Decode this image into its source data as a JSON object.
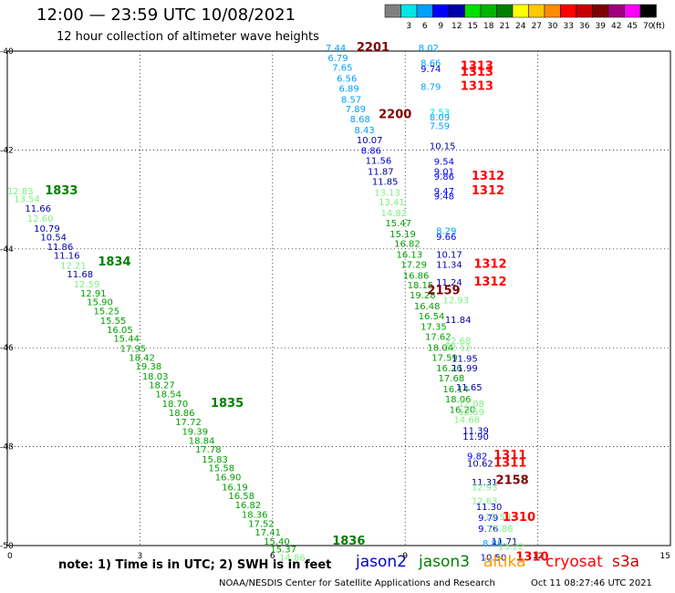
{
  "header": {
    "title": "12:00 — 23:59 UTC 10/08/2021",
    "subtitle": "12 hour collection of altimeter wave heights"
  },
  "colorbar": {
    "unit": "(ft)",
    "bins": [
      {
        "label": "",
        "color": "#808080"
      },
      {
        "label": "3",
        "color": "#00e5e5"
      },
      {
        "label": "6",
        "color": "#00a0ff"
      },
      {
        "label": "9",
        "color": "#0000ff"
      },
      {
        "label": "12",
        "color": "#0000a8"
      },
      {
        "label": "15",
        "color": "#00e000"
      },
      {
        "label": "18",
        "color": "#00b400"
      },
      {
        "label": "21",
        "color": "#008000"
      },
      {
        "label": "24",
        "color": "#ffff00"
      },
      {
        "label": "27",
        "color": "#ffc800"
      },
      {
        "label": "30",
        "color": "#ff8c00"
      },
      {
        "label": "33",
        "color": "#ff0000"
      },
      {
        "label": "36",
        "color": "#c80000"
      },
      {
        "label": "39",
        "color": "#800000"
      },
      {
        "label": "42",
        "color": "#a00080"
      },
      {
        "label": "45",
        "color": "#ff00ff"
      },
      {
        "label": "70",
        "color": "#000000"
      }
    ]
  },
  "chart_data": {
    "type": "scatter",
    "xlim": [
      0,
      15
    ],
    "ylim": [
      -50,
      -40
    ],
    "x_ticks": [
      0,
      3,
      6,
      9,
      12,
      15
    ],
    "y_ticks": [
      -40,
      -42,
      -44,
      -46,
      -48,
      -50
    ],
    "grid": true,
    "points": [
      {
        "x": 0.0,
        "y": -42.9,
        "t": "12.83",
        "c": "#7ff07f"
      },
      {
        "x": 0.15,
        "y": -43.05,
        "t": "13.54",
        "c": "#7ff07f"
      },
      {
        "x": 0.4,
        "y": -43.25,
        "t": "11.66",
        "c": "#0000a8"
      },
      {
        "x": 0.45,
        "y": -43.45,
        "t": "12.60",
        "c": "#7ff07f"
      },
      {
        "x": 0.6,
        "y": -43.65,
        "t": "10.79",
        "c": "#0000a8"
      },
      {
        "x": 0.75,
        "y": -43.83,
        "t": "10.54",
        "c": "#0000a8"
      },
      {
        "x": 0.9,
        "y": -44.02,
        "t": "11.86",
        "c": "#0000a8"
      },
      {
        "x": 1.05,
        "y": -44.2,
        "t": "11.16",
        "c": "#0000a8"
      },
      {
        "x": 1.2,
        "y": -44.4,
        "t": "12.21",
        "c": "#7ff07f"
      },
      {
        "x": 1.35,
        "y": -44.58,
        "t": "11.68",
        "c": "#0000a8"
      },
      {
        "x": 1.5,
        "y": -44.78,
        "t": "12.59",
        "c": "#7ff07f"
      },
      {
        "x": 1.65,
        "y": -44.96,
        "t": "12.91",
        "c": "#00a000"
      },
      {
        "x": 1.8,
        "y": -45.14,
        "t": "15.90",
        "c": "#00a000"
      },
      {
        "x": 1.95,
        "y": -45.32,
        "t": "15.25",
        "c": "#00a000"
      },
      {
        "x": 2.1,
        "y": -45.52,
        "t": "15.55",
        "c": "#00a000"
      },
      {
        "x": 2.25,
        "y": -45.7,
        "t": "16.05",
        "c": "#00a000"
      },
      {
        "x": 2.4,
        "y": -45.88,
        "t": "15.44",
        "c": "#00a000"
      },
      {
        "x": 2.55,
        "y": -46.08,
        "t": "17.95",
        "c": "#00a000"
      },
      {
        "x": 2.75,
        "y": -46.26,
        "t": "18.42",
        "c": "#00a000"
      },
      {
        "x": 2.9,
        "y": -46.44,
        "t": "19.38",
        "c": "#00a000"
      },
      {
        "x": 3.05,
        "y": -46.64,
        "t": "18.03",
        "c": "#00a000"
      },
      {
        "x": 3.2,
        "y": -46.82,
        "t": "18.27",
        "c": "#00a000"
      },
      {
        "x": 3.35,
        "y": -47.0,
        "t": "18.54",
        "c": "#00a000"
      },
      {
        "x": 3.5,
        "y": -47.2,
        "t": "18.70",
        "c": "#00a000"
      },
      {
        "x": 3.65,
        "y": -47.38,
        "t": "18.86",
        "c": "#00a000"
      },
      {
        "x": 3.8,
        "y": -47.56,
        "t": "17.72",
        "c": "#00a000"
      },
      {
        "x": 3.95,
        "y": -47.76,
        "t": "19.39",
        "c": "#00a000"
      },
      {
        "x": 4.1,
        "y": -47.94,
        "t": "18.84",
        "c": "#00a000"
      },
      {
        "x": 4.25,
        "y": -48.12,
        "t": "17.78",
        "c": "#00a000"
      },
      {
        "x": 4.4,
        "y": -48.32,
        "t": "15.83",
        "c": "#00a000"
      },
      {
        "x": 4.55,
        "y": -48.5,
        "t": "15.58",
        "c": "#00a000"
      },
      {
        "x": 4.7,
        "y": -48.68,
        "t": "16.90",
        "c": "#00a000"
      },
      {
        "x": 4.85,
        "y": -48.88,
        "t": "16.19",
        "c": "#00a000"
      },
      {
        "x": 5.0,
        "y": -49.06,
        "t": "16.58",
        "c": "#00a000"
      },
      {
        "x": 5.15,
        "y": -49.24,
        "t": "16.82",
        "c": "#00a000"
      },
      {
        "x": 5.3,
        "y": -49.44,
        "t": "18.36",
        "c": "#00a000"
      },
      {
        "x": 5.45,
        "y": -49.62,
        "t": "17.52",
        "c": "#00a000"
      },
      {
        "x": 5.6,
        "y": -49.8,
        "t": "17.41",
        "c": "#00a000"
      },
      {
        "x": 5.8,
        "y": -49.98,
        "t": "15.40",
        "c": "#00a000"
      },
      {
        "x": 5.95,
        "y": -50.14,
        "t": "15.37",
        "c": "#00a000"
      },
      {
        "x": 6.15,
        "y": -50.3,
        "t": "14.86",
        "c": "#7ff07f"
      },
      {
        "x": 7.2,
        "y": -40.0,
        "t": "7.44",
        "c": "#00a0ff"
      },
      {
        "x": 7.25,
        "y": -40.2,
        "t": "6.79",
        "c": "#00a0ff"
      },
      {
        "x": 7.35,
        "y": -40.4,
        "t": "7.65",
        "c": "#00a0ff"
      },
      {
        "x": 7.45,
        "y": -40.62,
        "t": "6.56",
        "c": "#00a0ff"
      },
      {
        "x": 7.5,
        "y": -40.82,
        "t": "6.89",
        "c": "#00a0ff"
      },
      {
        "x": 7.55,
        "y": -41.04,
        "t": "8.57",
        "c": "#00a0ff"
      },
      {
        "x": 7.65,
        "y": -41.24,
        "t": "7.89",
        "c": "#00a0ff"
      },
      {
        "x": 7.75,
        "y": -41.44,
        "t": "8.68",
        "c": "#00a0ff"
      },
      {
        "x": 7.85,
        "y": -41.66,
        "t": "8.43",
        "c": "#00a0ff"
      },
      {
        "x": 7.9,
        "y": -41.86,
        "t": "10.07",
        "c": "#0000a8"
      },
      {
        "x": 8.0,
        "y": -42.08,
        "t": "8.86",
        "c": "#0000ff"
      },
      {
        "x": 8.1,
        "y": -42.28,
        "t": "11.56",
        "c": "#0000a8"
      },
      {
        "x": 8.15,
        "y": -42.5,
        "t": "11.87",
        "c": "#0000a8"
      },
      {
        "x": 8.25,
        "y": -42.7,
        "t": "11.85",
        "c": "#0000a8"
      },
      {
        "x": 8.3,
        "y": -42.92,
        "t": "13.13",
        "c": "#7ff07f"
      },
      {
        "x": 8.4,
        "y": -43.12,
        "t": "13.41",
        "c": "#7ff07f"
      },
      {
        "x": 8.45,
        "y": -43.34,
        "t": "14.82",
        "c": "#7ff07f"
      },
      {
        "x": 8.55,
        "y": -43.54,
        "t": "15.47",
        "c": "#00a000"
      },
      {
        "x": 8.65,
        "y": -43.76,
        "t": "15.19",
        "c": "#00a000"
      },
      {
        "x": 8.75,
        "y": -43.96,
        "t": "16.82",
        "c": "#00a000"
      },
      {
        "x": 8.8,
        "y": -44.18,
        "t": "16.13",
        "c": "#00a000"
      },
      {
        "x": 8.9,
        "y": -44.38,
        "t": "17.29",
        "c": "#00a000"
      },
      {
        "x": 8.95,
        "y": -44.6,
        "t": "16.86",
        "c": "#00a000"
      },
      {
        "x": 9.05,
        "y": -44.8,
        "t": "18.15",
        "c": "#00a000"
      },
      {
        "x": 9.1,
        "y": -45.0,
        "t": "19.28",
        "c": "#00a000"
      },
      {
        "x": 9.2,
        "y": -45.22,
        "t": "16.48",
        "c": "#00a000"
      },
      {
        "x": 9.3,
        "y": -45.42,
        "t": "16.54",
        "c": "#00a000"
      },
      {
        "x": 9.35,
        "y": -45.64,
        "t": "17.35",
        "c": "#00a000"
      },
      {
        "x": 9.45,
        "y": -45.84,
        "t": "17.62",
        "c": "#00a000"
      },
      {
        "x": 9.5,
        "y": -46.06,
        "t": "18.04",
        "c": "#00a000"
      },
      {
        "x": 9.6,
        "y": -46.26,
        "t": "17.59",
        "c": "#00a000"
      },
      {
        "x": 9.7,
        "y": -46.48,
        "t": "16.26",
        "c": "#00a000"
      },
      {
        "x": 9.75,
        "y": -46.68,
        "t": "17.68",
        "c": "#00a000"
      },
      {
        "x": 9.85,
        "y": -46.9,
        "t": "16.14",
        "c": "#00a000"
      },
      {
        "x": 9.9,
        "y": -47.1,
        "t": "18.06",
        "c": "#00a000"
      },
      {
        "x": 10.0,
        "y": -47.32,
        "t": "16.20",
        "c": "#00a000"
      },
      {
        "x": 10.1,
        "y": -47.52,
        "t": "14.68",
        "c": "#7ff07f"
      },
      {
        "x": 9.3,
        "y": -40.0,
        "t": "8.02",
        "c": "#00a0ff"
      },
      {
        "x": 9.35,
        "y": -40.3,
        "t": "8.66",
        "c": "#00a0ff"
      },
      {
        "x": 9.35,
        "y": -40.42,
        "t": "9.74",
        "c": "#0000ff"
      },
      {
        "x": 9.35,
        "y": -40.78,
        "t": "8.79",
        "c": "#00a0ff"
      },
      {
        "x": 9.55,
        "y": -41.3,
        "t": "7.53",
        "c": "#00e5e5"
      },
      {
        "x": 9.55,
        "y": -41.4,
        "t": "8.09",
        "c": "#00a0ff"
      },
      {
        "x": 9.55,
        "y": -41.58,
        "t": "7.59",
        "c": "#00a0ff"
      },
      {
        "x": 9.55,
        "y": -41.98,
        "t": "10.15",
        "c": "#0000a8"
      },
      {
        "x": 9.65,
        "y": -42.3,
        "t": "9.54",
        "c": "#0000ff"
      },
      {
        "x": 9.65,
        "y": -42.5,
        "t": "9.01",
        "c": "#0000ff"
      },
      {
        "x": 9.65,
        "y": -42.6,
        "t": "9.86",
        "c": "#0000ff"
      },
      {
        "x": 9.65,
        "y": -42.9,
        "t": "9.47",
        "c": "#0000ff"
      },
      {
        "x": 9.65,
        "y": -43.0,
        "t": "9.48",
        "c": "#0000ff"
      },
      {
        "x": 9.7,
        "y": -43.7,
        "t": "8.29",
        "c": "#00a0ff"
      },
      {
        "x": 9.7,
        "y": -43.82,
        "t": "9.66",
        "c": "#0000ff"
      },
      {
        "x": 9.7,
        "y": -44.18,
        "t": "10.17",
        "c": "#0000a8"
      },
      {
        "x": 9.7,
        "y": -44.38,
        "t": "11.34",
        "c": "#0000a8"
      },
      {
        "x": 9.7,
        "y": -44.74,
        "t": "11.24",
        "c": "#0000a8"
      },
      {
        "x": 9.85,
        "y": -45.1,
        "t": "12.93",
        "c": "#7ff07f"
      },
      {
        "x": 9.9,
        "y": -45.5,
        "t": "11.84",
        "c": "#0000a8"
      },
      {
        "x": 9.9,
        "y": -45.92,
        "t": "12.68",
        "c": "#7ff07f"
      },
      {
        "x": 9.9,
        "y": -46.06,
        "t": "12.12",
        "c": "#7ff07f"
      },
      {
        "x": 10.05,
        "y": -46.28,
        "t": "11.95",
        "c": "#0000a8"
      },
      {
        "x": 10.05,
        "y": -46.48,
        "t": "11.99",
        "c": "#0000a8"
      },
      {
        "x": 10.15,
        "y": -46.86,
        "t": "11.65",
        "c": "#0000a8"
      },
      {
        "x": 10.2,
        "y": -47.2,
        "t": "12.08",
        "c": "#7ff07f"
      },
      {
        "x": 10.2,
        "y": -47.36,
        "t": "12.59",
        "c": "#7ff07f"
      },
      {
        "x": 10.3,
        "y": -47.74,
        "t": "11.39",
        "c": "#0000a8"
      },
      {
        "x": 10.3,
        "y": -47.86,
        "t": "11.90",
        "c": "#0000a8"
      },
      {
        "x": 10.4,
        "y": -48.26,
        "t": "9.82",
        "c": "#0000ff"
      },
      {
        "x": 10.4,
        "y": -48.4,
        "t": "10.62",
        "c": "#0000a8"
      },
      {
        "x": 10.5,
        "y": -48.78,
        "t": "11.31",
        "c": "#0000a8"
      },
      {
        "x": 10.5,
        "y": -48.88,
        "t": "12.93",
        "c": "#7ff07f"
      },
      {
        "x": 10.5,
        "y": -49.16,
        "t": "12.63",
        "c": "#7ff07f"
      },
      {
        "x": 10.6,
        "y": -49.28,
        "t": "11.30",
        "c": "#0000a8"
      },
      {
        "x": 10.65,
        "y": -49.5,
        "t": "9.79",
        "c": "#0000ff"
      },
      {
        "x": 10.8,
        "y": -49.48,
        "t": "12.59",
        "c": "#7ff07f"
      },
      {
        "x": 10.65,
        "y": -49.72,
        "t": "9.76",
        "c": "#0000ff"
      },
      {
        "x": 10.85,
        "y": -49.72,
        "t": "12.86",
        "c": "#7ff07f"
      },
      {
        "x": 10.75,
        "y": -50.02,
        "t": "8.88",
        "c": "#00a0ff"
      },
      {
        "x": 10.95,
        "y": -49.98,
        "t": "11.71",
        "c": "#0000a8"
      },
      {
        "x": 11.1,
        "y": -50.08,
        "t": "13.22",
        "c": "#7ff07f"
      },
      {
        "x": 10.7,
        "y": -50.3,
        "t": "10.50",
        "c": "#0000a8"
      }
    ],
    "passes": [
      {
        "x": 0.85,
        "y": -42.9,
        "t": "1833",
        "c": "#008000"
      },
      {
        "x": 2.05,
        "y": -44.34,
        "t": "1834",
        "c": "#008000"
      },
      {
        "x": 4.6,
        "y": -47.2,
        "t": "1835",
        "c": "#008000"
      },
      {
        "x": 7.35,
        "y": -49.98,
        "t": "1836",
        "c": "#008000"
      },
      {
        "x": 7.9,
        "y": -40.0,
        "t": "2201",
        "c": "#800000"
      },
      {
        "x": 8.4,
        "y": -41.36,
        "t": "2200",
        "c": "#800000"
      },
      {
        "x": 9.5,
        "y": -44.92,
        "t": "2159",
        "c": "#800000"
      },
      {
        "x": 11.05,
        "y": -48.75,
        "t": "2158",
        "c": "#800000"
      },
      {
        "x": 10.25,
        "y": -40.38,
        "t": "1313",
        "c": "#ff0000"
      },
      {
        "x": 10.25,
        "y": -40.5,
        "t": "1313",
        "c": "#ff0000"
      },
      {
        "x": 10.25,
        "y": -40.78,
        "t": "1313",
        "c": "#ff0000"
      },
      {
        "x": 10.5,
        "y": -42.6,
        "t": "1312",
        "c": "#ff0000"
      },
      {
        "x": 10.5,
        "y": -42.9,
        "t": "1312",
        "c": "#ff0000"
      },
      {
        "x": 10.55,
        "y": -44.38,
        "t": "1312",
        "c": "#ff0000"
      },
      {
        "x": 10.55,
        "y": -44.74,
        "t": "1312",
        "c": "#ff0000"
      },
      {
        "x": 11.0,
        "y": -48.25,
        "t": "1311",
        "c": "#ff0000"
      },
      {
        "x": 11.0,
        "y": -48.4,
        "t": "1311",
        "c": "#ff0000"
      },
      {
        "x": 11.2,
        "y": -49.5,
        "t": "1310",
        "c": "#ff0000"
      },
      {
        "x": 11.5,
        "y": -50.3,
        "t": "1310",
        "c": "#ff0000"
      }
    ]
  },
  "footer": {
    "note": "note: 1) Time is in UTC; 2) SWH is in feet",
    "satellites": [
      {
        "name": "jason2",
        "color": "#0000cc"
      },
      {
        "name": "jason3",
        "color": "#008000"
      },
      {
        "name": "altika",
        "color": "#ff9900"
      },
      {
        "name": "cryosat",
        "color": "#ff0000"
      },
      {
        "name": "s3a",
        "color": "#cc0000"
      }
    ],
    "credit": "NOAA/NESDIS Center for Satellite Applications and Research",
    "timestamp": "Oct 11 08:27:46 UTC 2021"
  }
}
